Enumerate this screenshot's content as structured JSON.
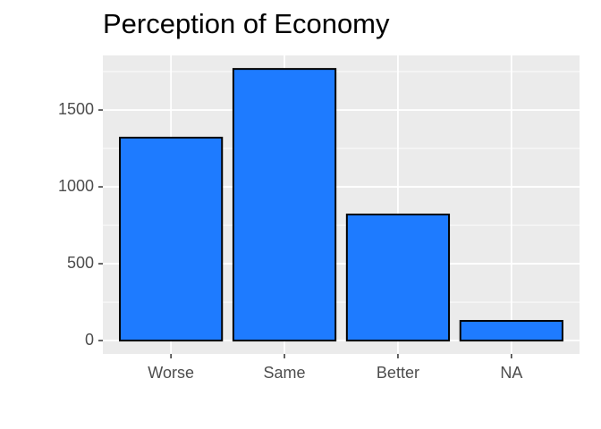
{
  "chart_data": {
    "type": "bar",
    "title": "Perception of Economy",
    "categories": [
      "Worse",
      "Same",
      "Better",
      "NA"
    ],
    "values": [
      1320,
      1767,
      820,
      128
    ],
    "color": "#1e7bff",
    "ylim": [
      -87,
      1855
    ],
    "yticks": [
      0,
      500,
      1000,
      1500
    ],
    "grid": true
  }
}
